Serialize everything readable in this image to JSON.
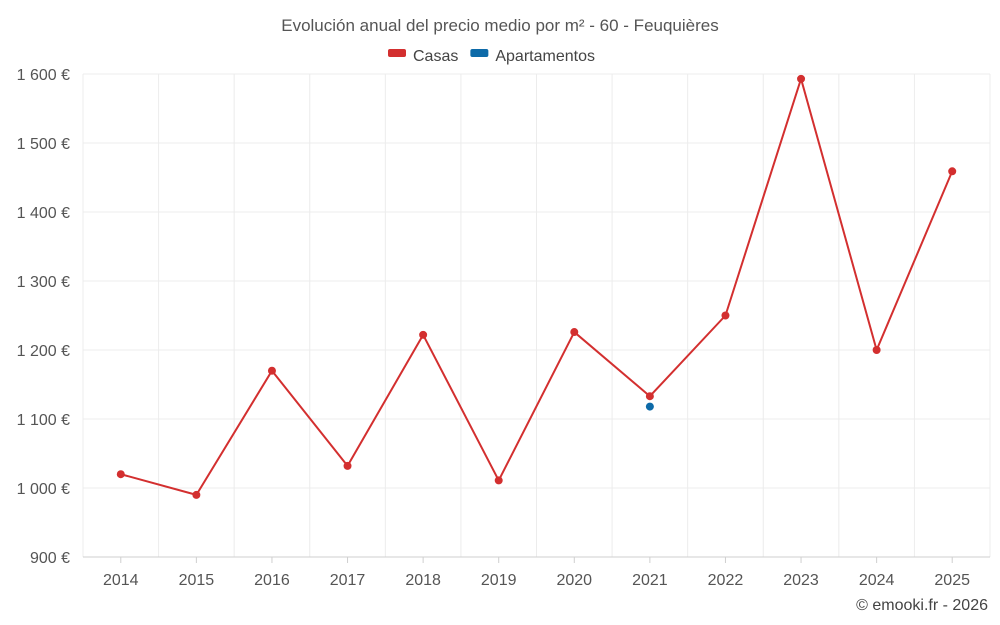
{
  "chart_data": {
    "type": "line",
    "title": "Evolución anual del precio medio por m² - 60 - Feuquières",
    "categories": [
      "2014",
      "2015",
      "2016",
      "2017",
      "2018",
      "2019",
      "2020",
      "2021",
      "2022",
      "2023",
      "2024",
      "2025"
    ],
    "series": [
      {
        "name": "Casas",
        "color": "#d32f2f",
        "values": [
          1020,
          990,
          1170,
          1032,
          1222,
          1011,
          1226,
          1133,
          1250,
          1593,
          1200,
          1459
        ]
      },
      {
        "name": "Apartamentos",
        "color": "#0d6aa8",
        "values": [
          null,
          null,
          null,
          null,
          null,
          null,
          null,
          1118,
          null,
          null,
          null,
          null
        ]
      }
    ],
    "ylim": [
      900,
      1600
    ],
    "yticks": [
      900,
      1000,
      1100,
      1200,
      1300,
      1400,
      1500,
      1600
    ],
    "ytick_labels": [
      "900 €",
      "1 000 €",
      "1 100 €",
      "1 200 €",
      "1 300 €",
      "1 400 €",
      "1 500 €",
      "1 600 €"
    ],
    "xlabel": "",
    "ylabel": "",
    "grid": true,
    "legend_position": "top-center"
  },
  "credit": "© emooki.fr - 2026"
}
